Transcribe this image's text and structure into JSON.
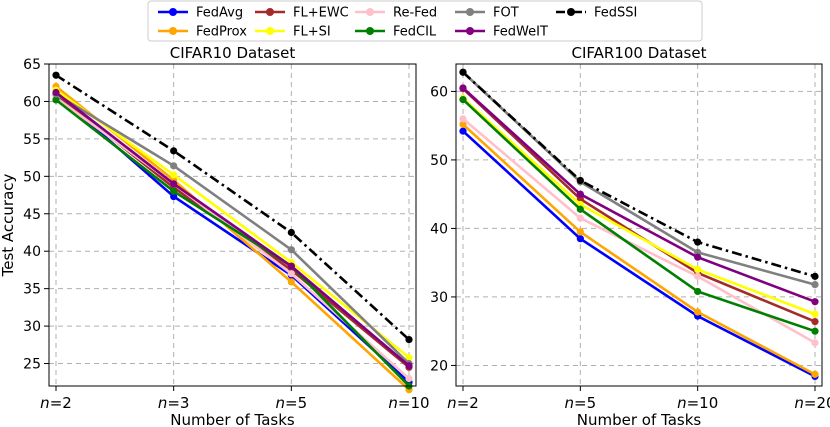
{
  "legend": [
    {
      "name": "FedAvg",
      "color": "#0000ff",
      "dash": false
    },
    {
      "name": "FedProx",
      "color": "#ffa500",
      "dash": false
    },
    {
      "name": "FL+EWC",
      "color": "#a52a2a",
      "dash": false
    },
    {
      "name": "FL+SI",
      "color": "#ffff00",
      "dash": false
    },
    {
      "name": "Re-Fed",
      "color": "#ffc0cb",
      "dash": false
    },
    {
      "name": "FedCIL",
      "color": "#008000",
      "dash": false
    },
    {
      "name": "FOT",
      "color": "#808080",
      "dash": false
    },
    {
      "name": "FedWeIT",
      "color": "#800080",
      "dash": false
    },
    {
      "name": "FedSSI",
      "color": "#000000",
      "dash": true
    }
  ],
  "chart_data": [
    {
      "type": "line",
      "title": "CIFAR10 Dataset",
      "xlabel": "Number of Tasks",
      "ylabel": "Test Accuracy",
      "categories": [
        "n=2",
        "n=3",
        "n=5",
        "n=10"
      ],
      "ylim": [
        22,
        65
      ],
      "yticks": [
        25,
        30,
        35,
        40,
        45,
        50,
        55,
        60,
        65
      ],
      "grid": true,
      "series": [
        {
          "name": "FedAvg",
          "values": [
            61.0,
            47.3,
            36.8,
            22.5
          ]
        },
        {
          "name": "FedProx",
          "values": [
            62.0,
            49.5,
            35.9,
            21.5
          ]
        },
        {
          "name": "FL+EWC",
          "values": [
            61.0,
            48.5,
            37.5,
            24.5
          ]
        },
        {
          "name": "FL+SI",
          "values": [
            61.5,
            50.2,
            38.5,
            25.8
          ]
        },
        {
          "name": "Re-Fed",
          "values": [
            60.5,
            49.0,
            37.0,
            23.0
          ]
        },
        {
          "name": "FedCIL",
          "values": [
            60.2,
            48.0,
            38.0,
            22.0
          ]
        },
        {
          "name": "FOT",
          "values": [
            61.0,
            51.4,
            40.2,
            25.0
          ]
        },
        {
          "name": "FedWeIT",
          "values": [
            61.2,
            49.0,
            38.0,
            24.7
          ]
        },
        {
          "name": "FedSSI",
          "values": [
            63.5,
            53.4,
            42.5,
            28.2
          ]
        }
      ]
    },
    {
      "type": "line",
      "title": "CIFAR100 Dataset",
      "xlabel": "Number of Tasks",
      "ylabel": "",
      "categories": [
        "n=2",
        "n=5",
        "n=10",
        "n=20"
      ],
      "ylim": [
        17,
        64
      ],
      "yticks": [
        20,
        30,
        40,
        50,
        60
      ],
      "grid": true,
      "series": [
        {
          "name": "FedAvg",
          "values": [
            54.2,
            38.5,
            27.2,
            18.4
          ]
        },
        {
          "name": "FedProx",
          "values": [
            55.2,
            39.5,
            27.8,
            18.7
          ]
        },
        {
          "name": "FL+EWC",
          "values": [
            60.4,
            44.3,
            33.5,
            26.4
          ]
        },
        {
          "name": "FL+SI",
          "values": [
            59.0,
            43.5,
            34.0,
            27.5
          ]
        },
        {
          "name": "Re-Fed",
          "values": [
            56.0,
            41.5,
            33.0,
            23.3
          ]
        },
        {
          "name": "FedCIL",
          "values": [
            58.8,
            42.8,
            30.8,
            25.0
          ]
        },
        {
          "name": "FOT",
          "values": [
            62.8,
            46.8,
            36.5,
            31.8
          ]
        },
        {
          "name": "FedWeIT",
          "values": [
            60.5,
            45.0,
            35.8,
            29.3
          ]
        },
        {
          "name": "FedSSI",
          "values": [
            62.8,
            47.0,
            38.0,
            33.0
          ]
        }
      ]
    }
  ]
}
